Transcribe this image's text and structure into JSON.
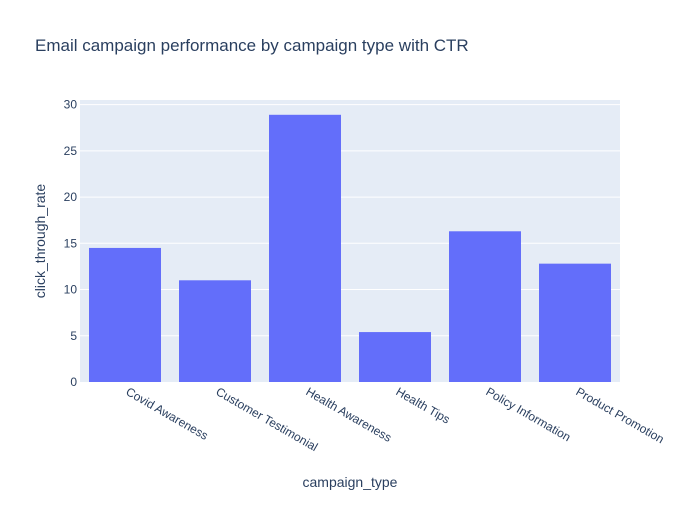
{
  "chart_data": {
    "type": "bar",
    "title": "Email campaign performance by campaign type with CTR",
    "xlabel": "campaign_type",
    "ylabel": "click_through_rate",
    "categories": [
      "Covid Awareness",
      "Customer Testimonial",
      "Health Awareness",
      "Health Tips",
      "Policy Information",
      "Product Promotion"
    ],
    "values": [
      14.5,
      11.0,
      28.9,
      5.4,
      16.3,
      12.8
    ],
    "ylim": [
      0,
      30.5
    ],
    "yticks": [
      0,
      5,
      10,
      15,
      20,
      25,
      30
    ],
    "grid": true,
    "legend": "none",
    "colors": {
      "bar": "#636efa",
      "plot_background": "#e5ecf6",
      "grid": "#ffffff",
      "title_text": "#2a3f5f",
      "axis_text": "#2a3f5f"
    }
  }
}
